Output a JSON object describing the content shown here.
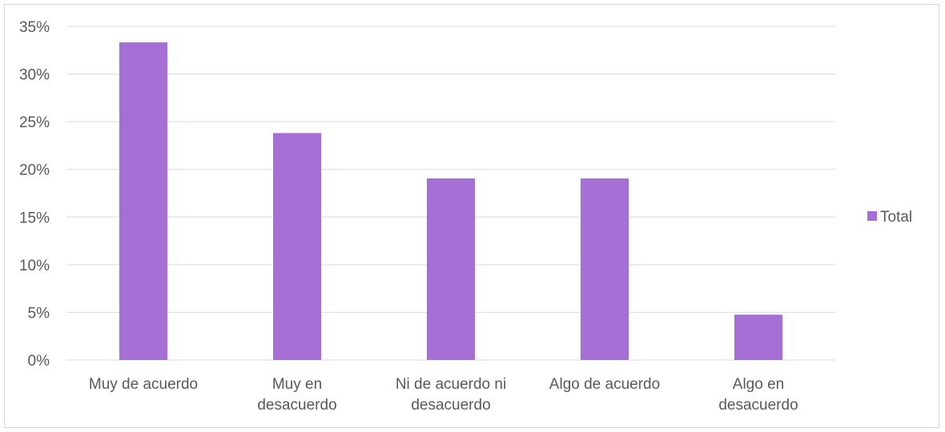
{
  "chart_data": {
    "type": "bar",
    "title": "",
    "xlabel": "",
    "ylabel": "",
    "categories": [
      [
        "Muy de acuerdo"
      ],
      [
        "Muy en",
        "desacuerdo"
      ],
      [
        "Ni de acuerdo ni",
        "desacuerdo"
      ],
      [
        "Algo de acuerdo"
      ],
      [
        "Algo en",
        "desacuerdo"
      ]
    ],
    "series": [
      {
        "name": "Total",
        "color": "#a56fd6",
        "values": [
          33.33,
          23.81,
          19.05,
          19.05,
          4.76
        ]
      }
    ],
    "ylim": [
      0,
      35
    ],
    "yticks": [
      0,
      5,
      10,
      15,
      20,
      25,
      30,
      35
    ],
    "ytick_labels": [
      "0%",
      "5%",
      "10%",
      "15%",
      "20%",
      "25%",
      "30%",
      "35%"
    ],
    "grid": true,
    "legend_position": "right"
  }
}
